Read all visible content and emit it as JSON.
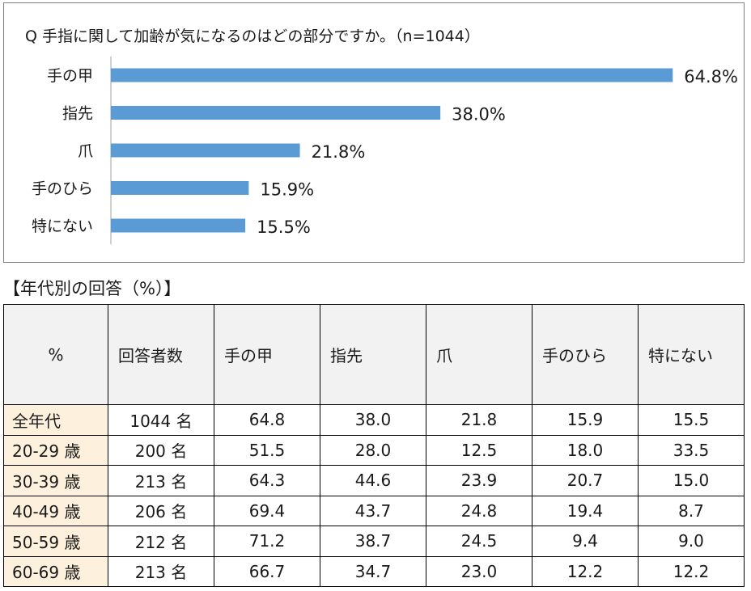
{
  "chart_data": {
    "type": "bar",
    "orientation": "horizontal",
    "title": "Q 手指に関して加齢が気になるのはどの部分ですか。（n=1044）",
    "categories": [
      "手の甲",
      "指先",
      "爪",
      "手のひら",
      "特にない"
    ],
    "values": [
      64.8,
      38.0,
      21.8,
      15.9,
      15.5
    ],
    "value_labels": [
      "64.8%",
      "38.0%",
      "21.8%",
      "15.9%",
      "15.5%"
    ],
    "xlim": [
      0,
      70
    ],
    "unit": "%",
    "bar_color": "#5b9bd5",
    "grid": false,
    "legend": "none"
  },
  "table": {
    "heading": "【年代別の回答（%）】",
    "headers": [
      "%",
      "回答者数",
      "手の甲",
      "指先",
      "爪",
      "手のひら",
      "特にない"
    ],
    "rows": [
      [
        "全年代",
        "1044 名",
        "64.8",
        "38.0",
        "21.8",
        "15.9",
        "15.5"
      ],
      [
        "20-29 歳",
        "200 名",
        "51.5",
        "28.0",
        "12.5",
        "18.0",
        "33.5"
      ],
      [
        "30-39 歳",
        "213 名",
        "64.3",
        "44.6",
        "23.9",
        "20.7",
        "15.0"
      ],
      [
        "40-49 歳",
        "206 名",
        "69.4",
        "43.7",
        "24.8",
        "19.4",
        "8.7"
      ],
      [
        "50-59 歳",
        "212 名",
        "71.2",
        "38.7",
        "24.5",
        "9.4",
        "9.0"
      ],
      [
        "60-69 歳",
        "213 名",
        "66.7",
        "34.7",
        "23.0",
        "12.2",
        "12.2"
      ]
    ]
  },
  "colors": {
    "bar": "#5b9bd5",
    "age_cell_bg": "#fdf0dc",
    "header_bg": "#f2f2f2",
    "axis": "#d0d0d0"
  }
}
